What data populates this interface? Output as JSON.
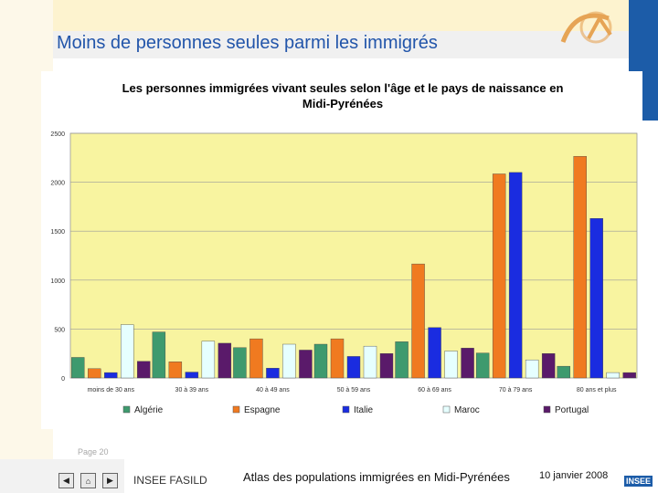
{
  "page": {
    "title": "Moins de personnes seules parmi les immigrés",
    "page_number": "Page 20"
  },
  "footer": {
    "org": "INSEE FASILD",
    "atlas": "Atlas des populations immigrées en Midi-Pyrénées",
    "date": "10 janvier 2008",
    "logo_text": "INSEE",
    "nav": {
      "prev": "◀",
      "home": "⌂",
      "next": "▶"
    }
  },
  "colors": {
    "plot_bg": "#f8f4a0",
    "header_band": "#fdf3cf",
    "title_color": "#2255aa",
    "accent_blue": "#1c5ca8"
  },
  "chart_data": {
    "type": "bar",
    "title_line1": "Les personnes immigrées vivant seules selon l'âge et le pays de naissance en",
    "title_line2": "Midi-Pyrénées",
    "categories": [
      "moins de 30 ans",
      "30 à 39 ans",
      "40 à 49 ans",
      "50 à 59 ans",
      "60 à 69 ans",
      "70 à 79 ans",
      "80 ans et plus"
    ],
    "ylim": [
      0,
      2500
    ],
    "yticks": [
      "0",
      "500",
      "1000",
      "1500",
      "2000",
      "2500"
    ],
    "ytick_values": [
      0,
      500,
      1000,
      1500,
      2000,
      2500
    ],
    "legend_position": "bottom",
    "series": [
      {
        "name": "Algérie",
        "color": "#3e9a6e",
        "values": [
          210,
          470,
          310,
          345,
          370,
          255,
          120
        ]
      },
      {
        "name": "Espagne",
        "color": "#f07a20",
        "values": [
          95,
          165,
          400,
          400,
          1165,
          2085,
          2265
        ]
      },
      {
        "name": "Italie",
        "color": "#1a2ce0",
        "values": [
          55,
          60,
          100,
          220,
          515,
          2100,
          1630
        ]
      },
      {
        "name": "Maroc",
        "color": "#e6ffff",
        "values": [
          545,
          375,
          345,
          325,
          275,
          185,
          55
        ]
      },
      {
        "name": "Portugal",
        "color": "#5a1a6a",
        "values": [
          170,
          355,
          285,
          250,
          305,
          250,
          55
        ]
      }
    ]
  }
}
